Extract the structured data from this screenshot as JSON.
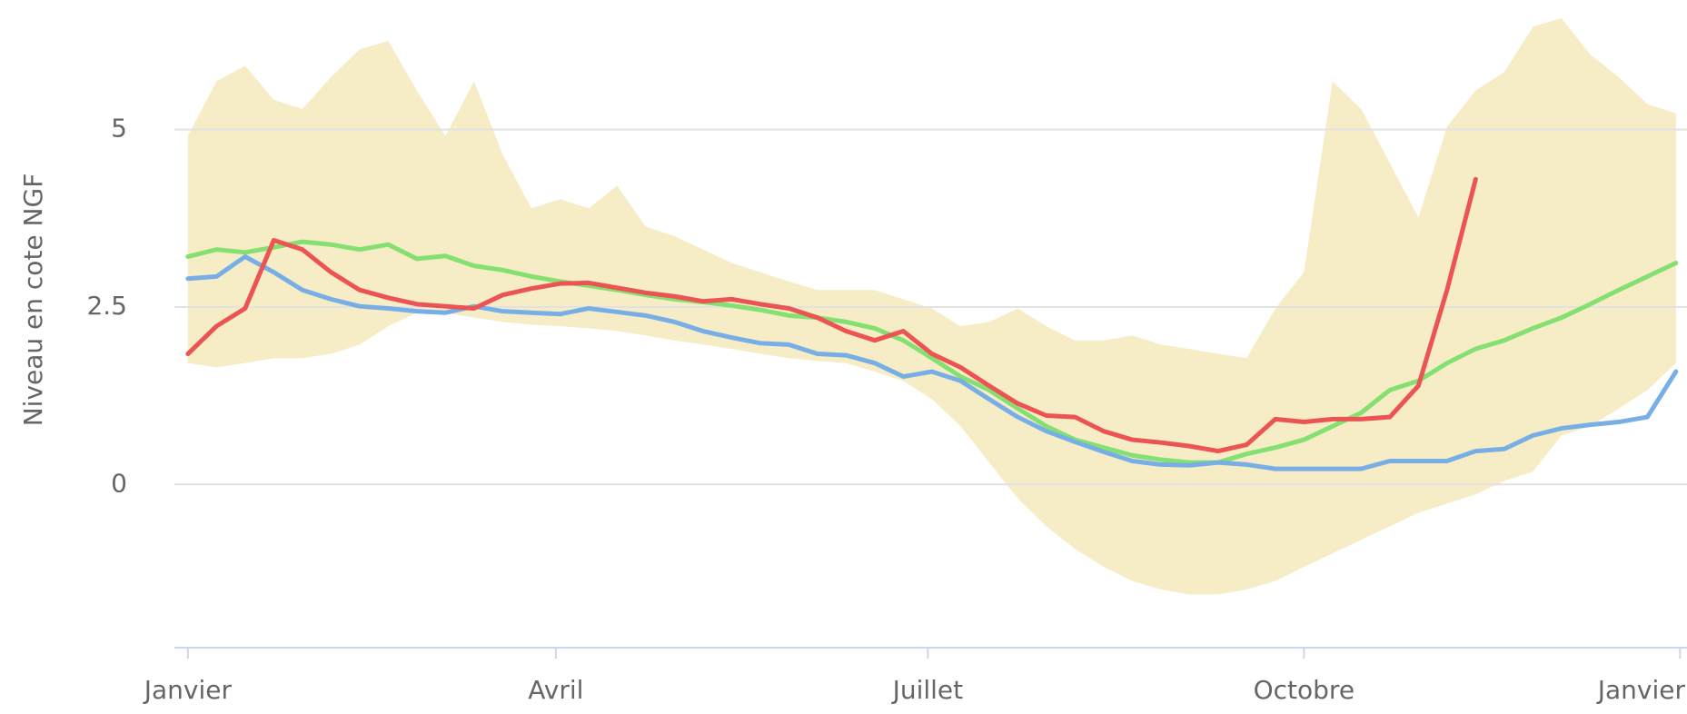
{
  "chart_data": {
    "type": "line",
    "y_label": "Niveau en cote NGF",
    "x": [
      0,
      7,
      14,
      21,
      28,
      35,
      42,
      49,
      56,
      63,
      70,
      77,
      84,
      91,
      98,
      105,
      112,
      119,
      126,
      133,
      140,
      147,
      154,
      161,
      168,
      175,
      182,
      189,
      196,
      203,
      210,
      217,
      224,
      231,
      238,
      245,
      252,
      259,
      266,
      273,
      280,
      287,
      294,
      301,
      308,
      315,
      322,
      329,
      336,
      343,
      350,
      357,
      364
    ],
    "xlim": [
      -3.3,
      366.7
    ],
    "xticks": [
      {
        "value": 0,
        "label": "Janvier"
      },
      {
        "value": 90,
        "label": "Avril"
      },
      {
        "value": 181,
        "label": "Juillet"
      },
      {
        "value": 273,
        "label": "Octobre"
      },
      {
        "value": 365,
        "label": "Janvier"
      }
    ],
    "ylim": [
      -2.3,
      6.8
    ],
    "yticks": [
      0,
      2.5,
      5
    ],
    "grid": true,
    "range": {
      "color": "#f6edc6",
      "high": [
        4.91,
        5.68,
        5.9,
        5.42,
        5.29,
        5.74,
        6.13,
        6.25,
        5.55,
        4.91,
        5.68,
        4.65,
        3.89,
        4.02,
        3.89,
        4.21,
        3.63,
        3.5,
        3.31,
        3.12,
        2.99,
        2.86,
        2.74,
        2.74,
        2.74,
        2.61,
        2.48,
        2.23,
        2.29,
        2.48,
        2.23,
        2.03,
        2.03,
        2.1,
        1.97,
        1.91,
        1.84,
        1.78,
        2.48,
        2.99,
        5.68,
        5.29,
        4.53,
        3.76,
        5.04,
        5.55,
        5.81,
        6.45,
        6.57,
        6.06,
        5.74,
        5.36,
        5.23
      ],
      "low": [
        1.71,
        1.65,
        1.71,
        1.78,
        1.78,
        1.84,
        1.97,
        2.23,
        2.42,
        2.42,
        2.35,
        2.29,
        2.25,
        2.23,
        2.2,
        2.16,
        2.1,
        2.03,
        1.97,
        1.91,
        1.84,
        1.78,
        1.74,
        1.71,
        1.59,
        1.46,
        1.2,
        0.82,
        0.31,
        -0.2,
        -0.59,
        -0.91,
        -1.16,
        -1.36,
        -1.48,
        -1.55,
        -1.55,
        -1.48,
        -1.36,
        -1.16,
        -0.97,
        -0.78,
        -0.59,
        -0.4,
        -0.27,
        -0.14,
        0.05,
        0.18,
        0.69,
        0.82,
        1.07,
        1.33,
        1.71
      ]
    },
    "series": [
      {
        "color": "#84e070",
        "values": [
          3.21,
          3.31,
          3.27,
          3.34,
          3.42,
          3.38,
          3.31,
          3.38,
          3.18,
          3.22,
          3.08,
          3.02,
          2.93,
          2.86,
          2.8,
          2.74,
          2.67,
          2.61,
          2.57,
          2.52,
          2.46,
          2.38,
          2.35,
          2.29,
          2.2,
          2.03,
          1.78,
          1.52,
          1.33,
          1.07,
          0.82,
          0.63,
          0.52,
          0.41,
          0.35,
          0.31,
          0.31,
          0.43,
          0.52,
          0.63,
          0.82,
          1.01,
          1.33,
          1.46,
          1.71,
          1.91,
          2.03,
          2.2,
          2.35,
          2.54,
          2.74,
          2.93,
          3.12
        ]
      },
      {
        "color": "#78aee6",
        "values": [
          2.9,
          2.93,
          3.21,
          2.99,
          2.74,
          2.61,
          2.51,
          2.48,
          2.44,
          2.42,
          2.51,
          2.44,
          2.42,
          2.4,
          2.48,
          2.43,
          2.38,
          2.29,
          2.16,
          2.07,
          1.99,
          1.97,
          1.84,
          1.82,
          1.71,
          1.52,
          1.59,
          1.46,
          1.2,
          0.95,
          0.75,
          0.6,
          0.46,
          0.33,
          0.28,
          0.27,
          0.31,
          0.28,
          0.22,
          0.22,
          0.22,
          0.22,
          0.33,
          0.33,
          0.33,
          0.47,
          0.5,
          0.69,
          0.79,
          0.84,
          0.88,
          0.95,
          1.59
        ]
      },
      {
        "color": "#ec5454",
        "values": [
          1.84,
          2.23,
          2.48,
          3.44,
          3.31,
          2.99,
          2.74,
          2.63,
          2.54,
          2.51,
          2.48,
          2.67,
          2.76,
          2.83,
          2.84,
          2.77,
          2.7,
          2.65,
          2.58,
          2.61,
          2.54,
          2.48,
          2.35,
          2.16,
          2.03,
          2.16,
          1.84,
          1.65,
          1.39,
          1.14,
          0.97,
          0.95,
          0.75,
          0.63,
          0.59,
          0.54,
          0.47,
          0.56,
          0.92,
          0.88,
          0.92,
          0.92,
          0.95,
          1.39,
          2.74,
          4.3,
          null,
          null,
          null,
          null,
          null,
          null,
          null
        ]
      }
    ]
  }
}
